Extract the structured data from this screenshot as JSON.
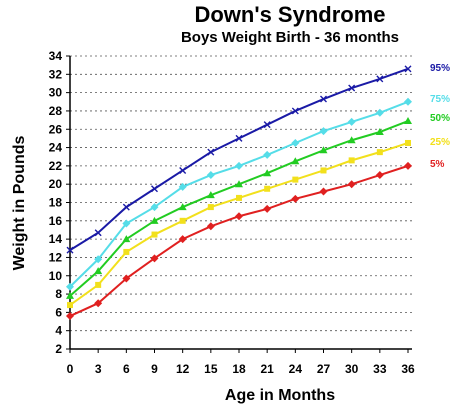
{
  "chart_data": {
    "type": "line",
    "title": "Down's Syndrome",
    "subtitle": "Boys Weight Birth - 36 months",
    "xlabel": "Age in Months",
    "ylabel": "Weight in Pounds",
    "x": [
      0,
      3,
      6,
      9,
      12,
      15,
      18,
      21,
      24,
      27,
      30,
      33,
      36
    ],
    "xlim": [
      0,
      36
    ],
    "ylim": [
      2,
      34
    ],
    "yticks": [
      2,
      4,
      6,
      8,
      10,
      12,
      14,
      16,
      18,
      20,
      22,
      24,
      26,
      28,
      30,
      32,
      34
    ],
    "grid": "horizontal dashed",
    "series": [
      {
        "name": "95%",
        "color": "#1a1aa6",
        "marker": "x",
        "values": [
          12.8,
          14.7,
          17.5,
          19.5,
          21.5,
          23.5,
          25.0,
          26.5,
          28.0,
          29.3,
          30.5,
          31.5,
          32.6
        ]
      },
      {
        "name": "75%",
        "color": "#55dde8",
        "marker": "diamond",
        "values": [
          8.8,
          11.8,
          15.7,
          17.5,
          19.7,
          21.0,
          22.0,
          23.2,
          24.5,
          25.8,
          26.8,
          27.8,
          29.0
        ]
      },
      {
        "name": "50%",
        "color": "#22cc22",
        "marker": "triangle",
        "values": [
          7.8,
          10.5,
          14.0,
          16.0,
          17.5,
          18.8,
          20.0,
          21.2,
          22.5,
          23.7,
          24.8,
          25.7,
          26.9
        ]
      },
      {
        "name": "25%",
        "color": "#f2e01c",
        "marker": "square",
        "values": [
          6.8,
          9.0,
          12.6,
          14.5,
          16.0,
          17.5,
          18.5,
          19.5,
          20.5,
          21.5,
          22.6,
          23.5,
          24.5
        ]
      },
      {
        "name": "5%",
        "color": "#e02020",
        "marker": "diamond",
        "values": [
          5.6,
          7.0,
          9.7,
          11.9,
          14.0,
          15.4,
          16.5,
          17.3,
          18.4,
          19.2,
          20.0,
          21.0,
          22.0
        ]
      }
    ]
  }
}
